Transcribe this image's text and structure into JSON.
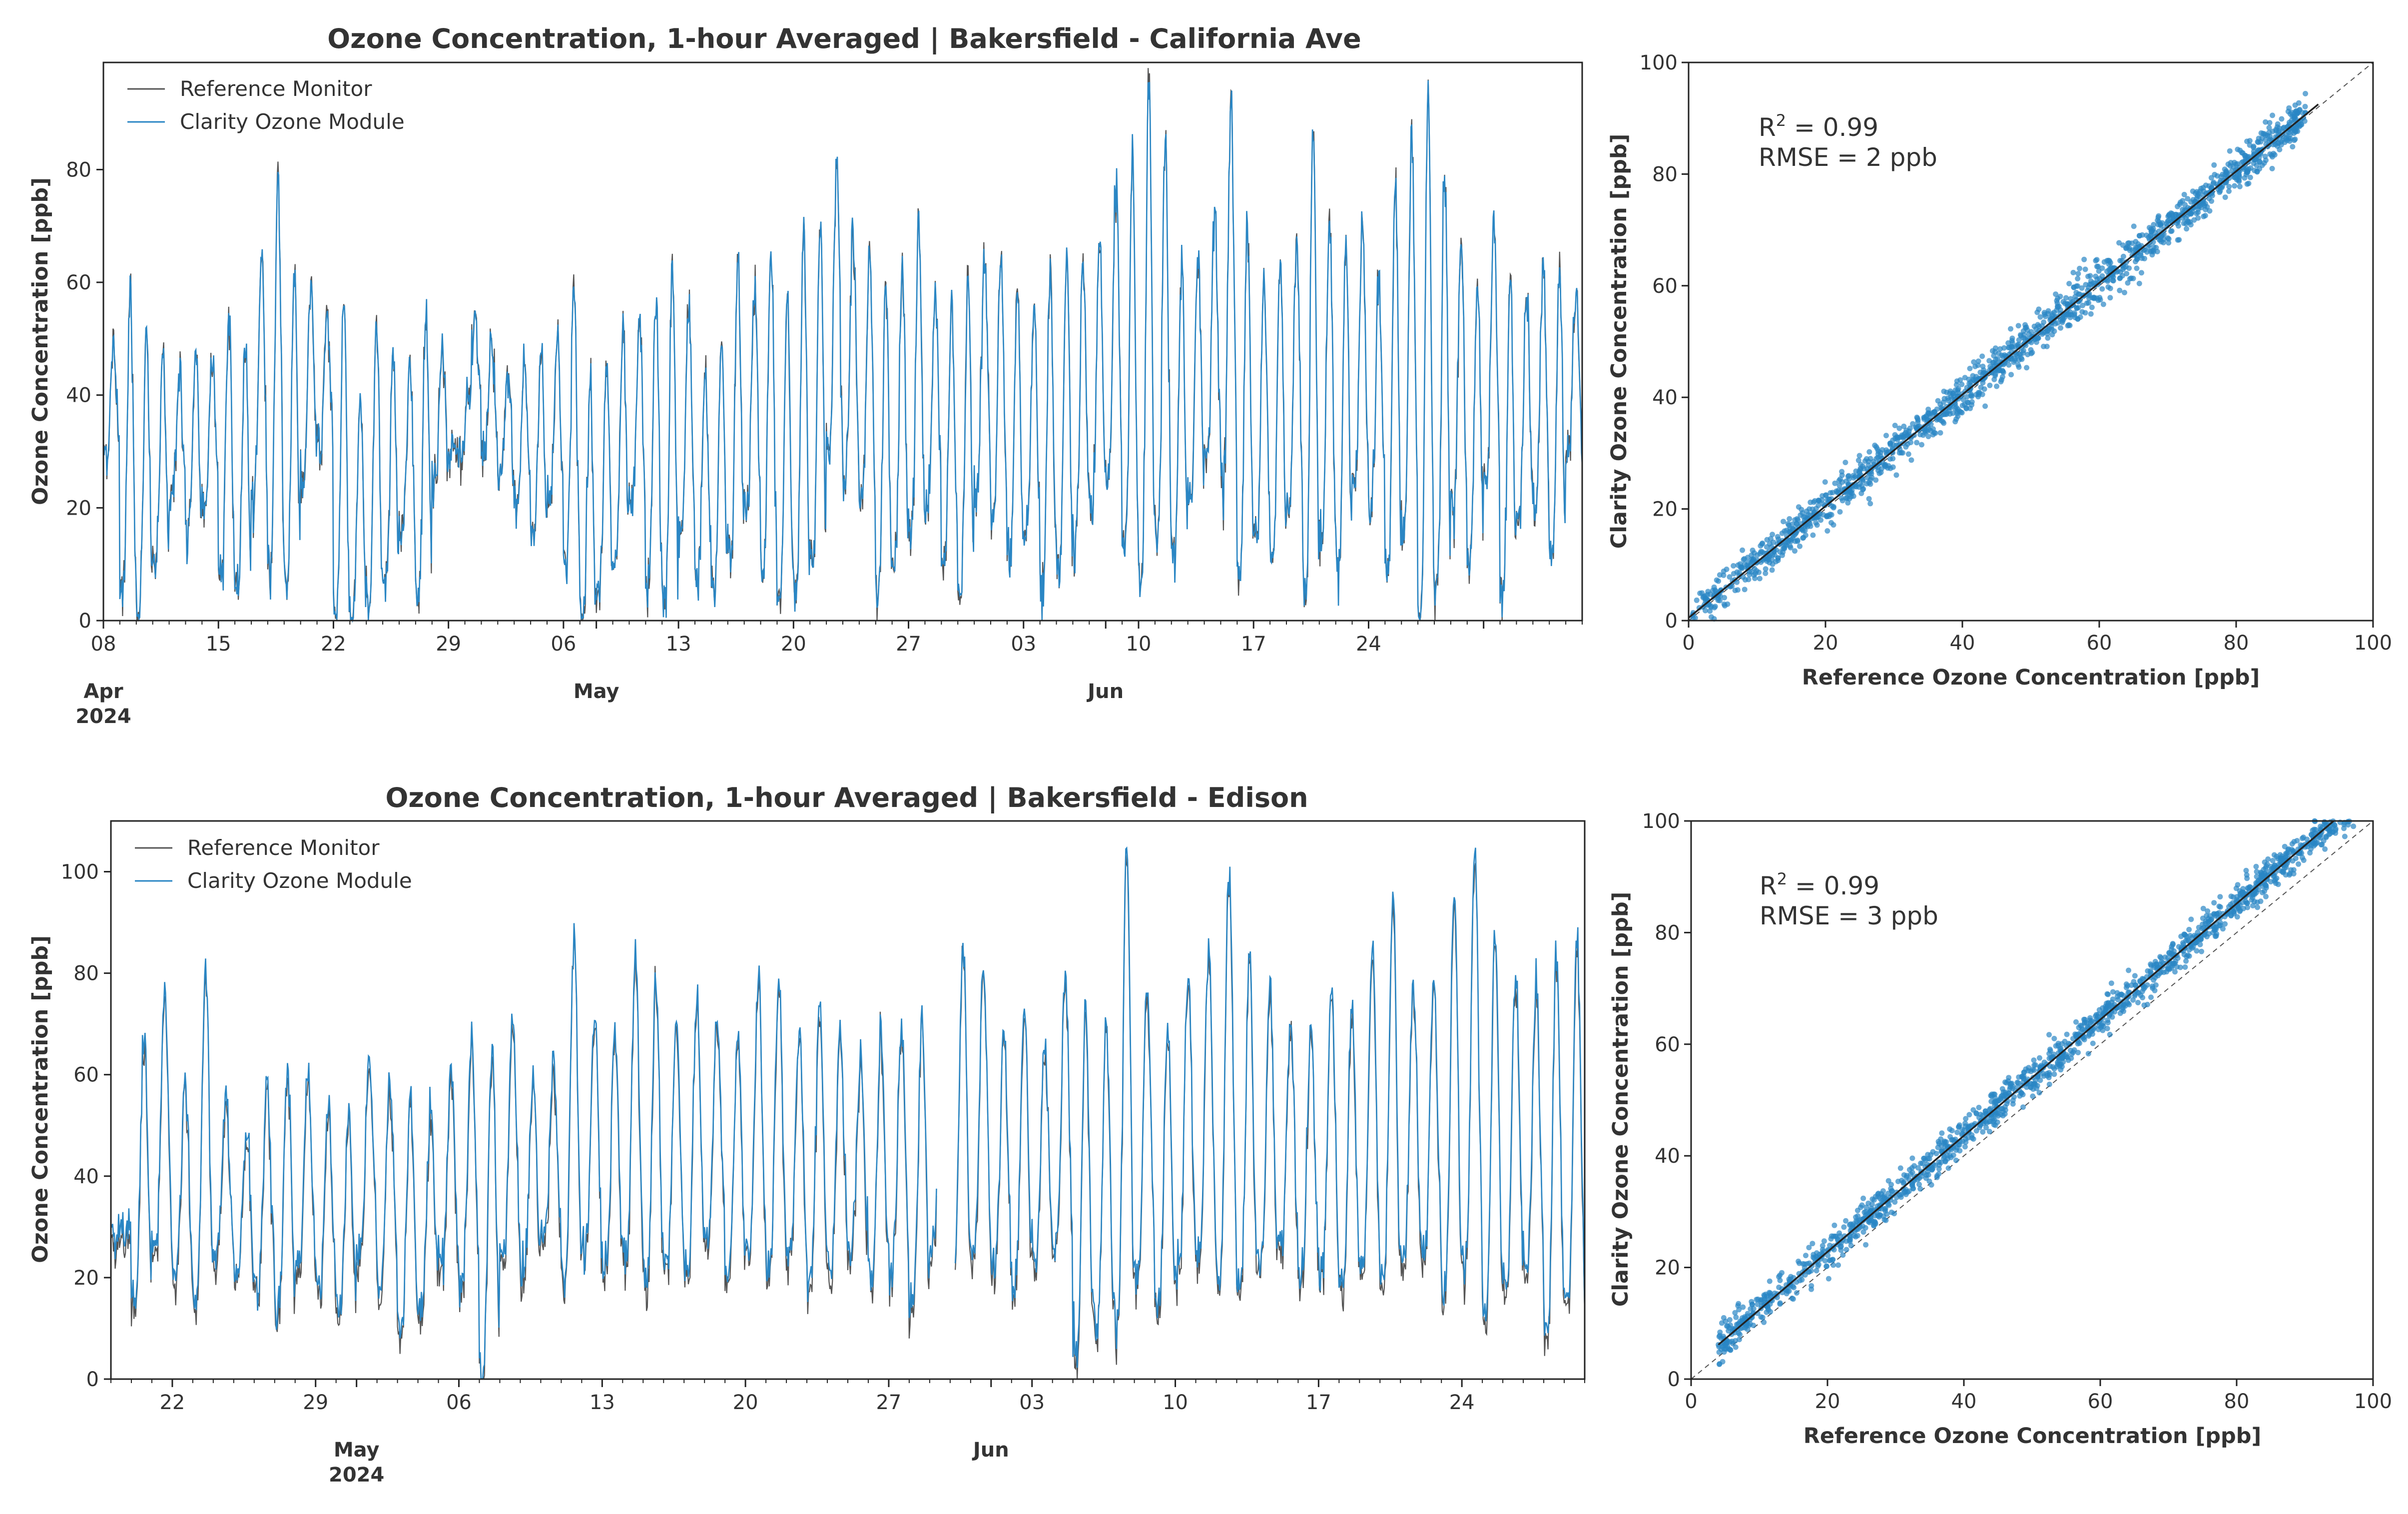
{
  "chart_data": [
    {
      "id": "ts_california",
      "type": "line",
      "title": "Ozone Concentration, 1-hour Averaged | Bakersfield - California Ave",
      "xlabel": "",
      "ylabel": "Ozone Concentration [ppb]",
      "x_start": "2024-04-01",
      "x_end": "2024-06-30",
      "ylim": [
        0,
        99
      ],
      "yticks": [
        0,
        20,
        40,
        60,
        80
      ],
      "day_ticks": [
        "08",
        "15",
        "22",
        "29",
        "06",
        "13",
        "20",
        "27",
        "03",
        "10",
        "17",
        "24"
      ],
      "month_labels": [
        "Apr",
        "May",
        "Jun"
      ],
      "year_label": "2024",
      "legend": [
        "Reference Monitor",
        "Clarity Ozone Module"
      ],
      "series": [
        {
          "name": "Reference Monitor",
          "color": "#555555"
        },
        {
          "name": "Clarity Ozone Module",
          "color": "#2a86c4"
        }
      ],
      "daily_peaks": [
        48,
        58,
        50,
        46,
        44,
        47,
        49,
        54,
        50,
        66,
        80,
        63,
        60,
        55,
        57,
        40,
        53,
        48,
        46,
        55,
        50,
        30,
        52,
        48,
        44,
        46,
        48,
        50,
        58,
        42,
        44,
        50,
        52,
        58,
        62,
        56,
        44,
        50,
        62,
        60,
        65,
        58,
        68,
        72,
        84,
        70,
        66,
        60,
        62,
        70,
        58,
        55,
        60,
        65,
        64,
        58,
        56,
        62,
        66,
        64,
        68,
        78,
        80,
        95,
        84,
        64,
        66,
        72,
        92,
        70,
        62,
        64,
        68,
        88,
        72,
        66,
        70,
        60,
        78,
        86,
        94,
        80,
        66,
        62,
        70,
        60,
        58,
        62,
        64,
        58,
        60
      ],
      "daily_mins": [
        30,
        5,
        2,
        10,
        22,
        15,
        20,
        8,
        4,
        20,
        10,
        6,
        25,
        30,
        0,
        0,
        2,
        5,
        15,
        5,
        25,
        30,
        38,
        30,
        25,
        20,
        15,
        22,
        10,
        0,
        5,
        10,
        20,
        5,
        2,
        15,
        8,
        5,
        12,
        20,
        8,
        3,
        5,
        10,
        30,
        25,
        20,
        5,
        10,
        15,
        20,
        10,
        5,
        25,
        18,
        10,
        15,
        5,
        8,
        15,
        20,
        25,
        10,
        5,
        15,
        10,
        20,
        30,
        25,
        8,
        15,
        10,
        20,
        5,
        15,
        10,
        25,
        20,
        8,
        15,
        0,
        5,
        20,
        10,
        25,
        5,
        18,
        20,
        10,
        30,
        28
      ],
      "scatter": {
        "xlabel": "Reference Ozone Concentration [ppb]",
        "ylabel": "Clarity Ozone Concentration [ppb]",
        "xlim": [
          0,
          100
        ],
        "ylim": [
          0,
          100
        ],
        "ticks": [
          0,
          20,
          40,
          60,
          80,
          100
        ],
        "r2_label": "R",
        "r2_value": "2 = 0.99",
        "rmse": "RMSE = 2 ppb",
        "fit_slope": 1.0,
        "fit_intercept": 0.5,
        "fit_range": [
          0,
          92
        ],
        "point_color": "#2a86c4"
      }
    },
    {
      "id": "ts_edison",
      "type": "line",
      "title": "Ozone Concentration, 1-hour Averaged | Bakersfield - Edison",
      "xlabel": "",
      "ylabel": "Ozone Concentration [ppb]",
      "x_start": "2024-04-19",
      "x_end": "2024-06-30",
      "ylim": [
        0,
        110
      ],
      "yticks": [
        0,
        20,
        40,
        60,
        80,
        100
      ],
      "day_ticks": [
        "22",
        "29",
        "06",
        "13",
        "20",
        "27",
        "03",
        "10",
        "17",
        "24"
      ],
      "month_labels": [
        "May",
        "Jun"
      ],
      "year_label": "2024",
      "legend": [
        "Reference Monitor",
        "Clarity Ozone Module"
      ],
      "series": [
        {
          "name": "Reference Monitor",
          "color": "#555555"
        },
        {
          "name": "Clarity Ozone Module",
          "color": "#2a86c4"
        }
      ],
      "daily_peaks": [
        30,
        66,
        77,
        60,
        81,
        55,
        50,
        58,
        62,
        60,
        55,
        52,
        64,
        60,
        56,
        54,
        60,
        65,
        66,
        70,
        60,
        62,
        86,
        72,
        68,
        84,
        80,
        70,
        76,
        72,
        68,
        78,
        80,
        68,
        74,
        70,
        62,
        68,
        70,
        72,
        80,
        84,
        82,
        68,
        74,
        66,
        80,
        74,
        72,
        104,
        78,
        68,
        80,
        86,
        100,
        82,
        78,
        72,
        70,
        76,
        74,
        86,
        94,
        78,
        80,
        96,
        105,
        88,
        82,
        78,
        84,
        88,
        80,
        74,
        60
      ],
      "daily_mins": [
        28,
        14,
        25,
        20,
        15,
        24,
        20,
        18,
        14,
        22,
        18,
        14,
        25,
        20,
        10,
        14,
        22,
        20,
        2,
        25,
        22,
        28,
        20,
        25,
        22,
        24,
        20,
        24,
        22,
        28,
        20,
        25,
        22,
        24,
        20,
        22,
        25,
        20,
        22,
        14,
        25,
        20,
        25,
        22,
        18,
        24,
        25,
        5,
        10,
        12,
        20,
        15,
        22,
        24,
        20,
        18,
        22,
        25,
        20,
        22,
        18,
        22,
        20,
        24,
        25,
        18,
        22,
        14,
        18,
        22,
        10,
        15,
        12,
        20,
        18
      ],
      "gaps_after_day": [
        40
      ],
      "scatter": {
        "xlabel": "Reference Ozone Concentration [ppb]",
        "ylabel": "Clarity Ozone Concentration [ppb]",
        "xlim": [
          0,
          100
        ],
        "ylim": [
          0,
          100
        ],
        "ticks": [
          0,
          20,
          40,
          60,
          80,
          100
        ],
        "r2_label": "R",
        "r2_value": "2 = 0.99",
        "rmse": "RMSE = 3 ppb",
        "fit_slope": 1.04,
        "fit_intercept": 2.0,
        "fit_range": [
          4,
          100
        ],
        "point_color": "#2a86c4"
      }
    }
  ]
}
